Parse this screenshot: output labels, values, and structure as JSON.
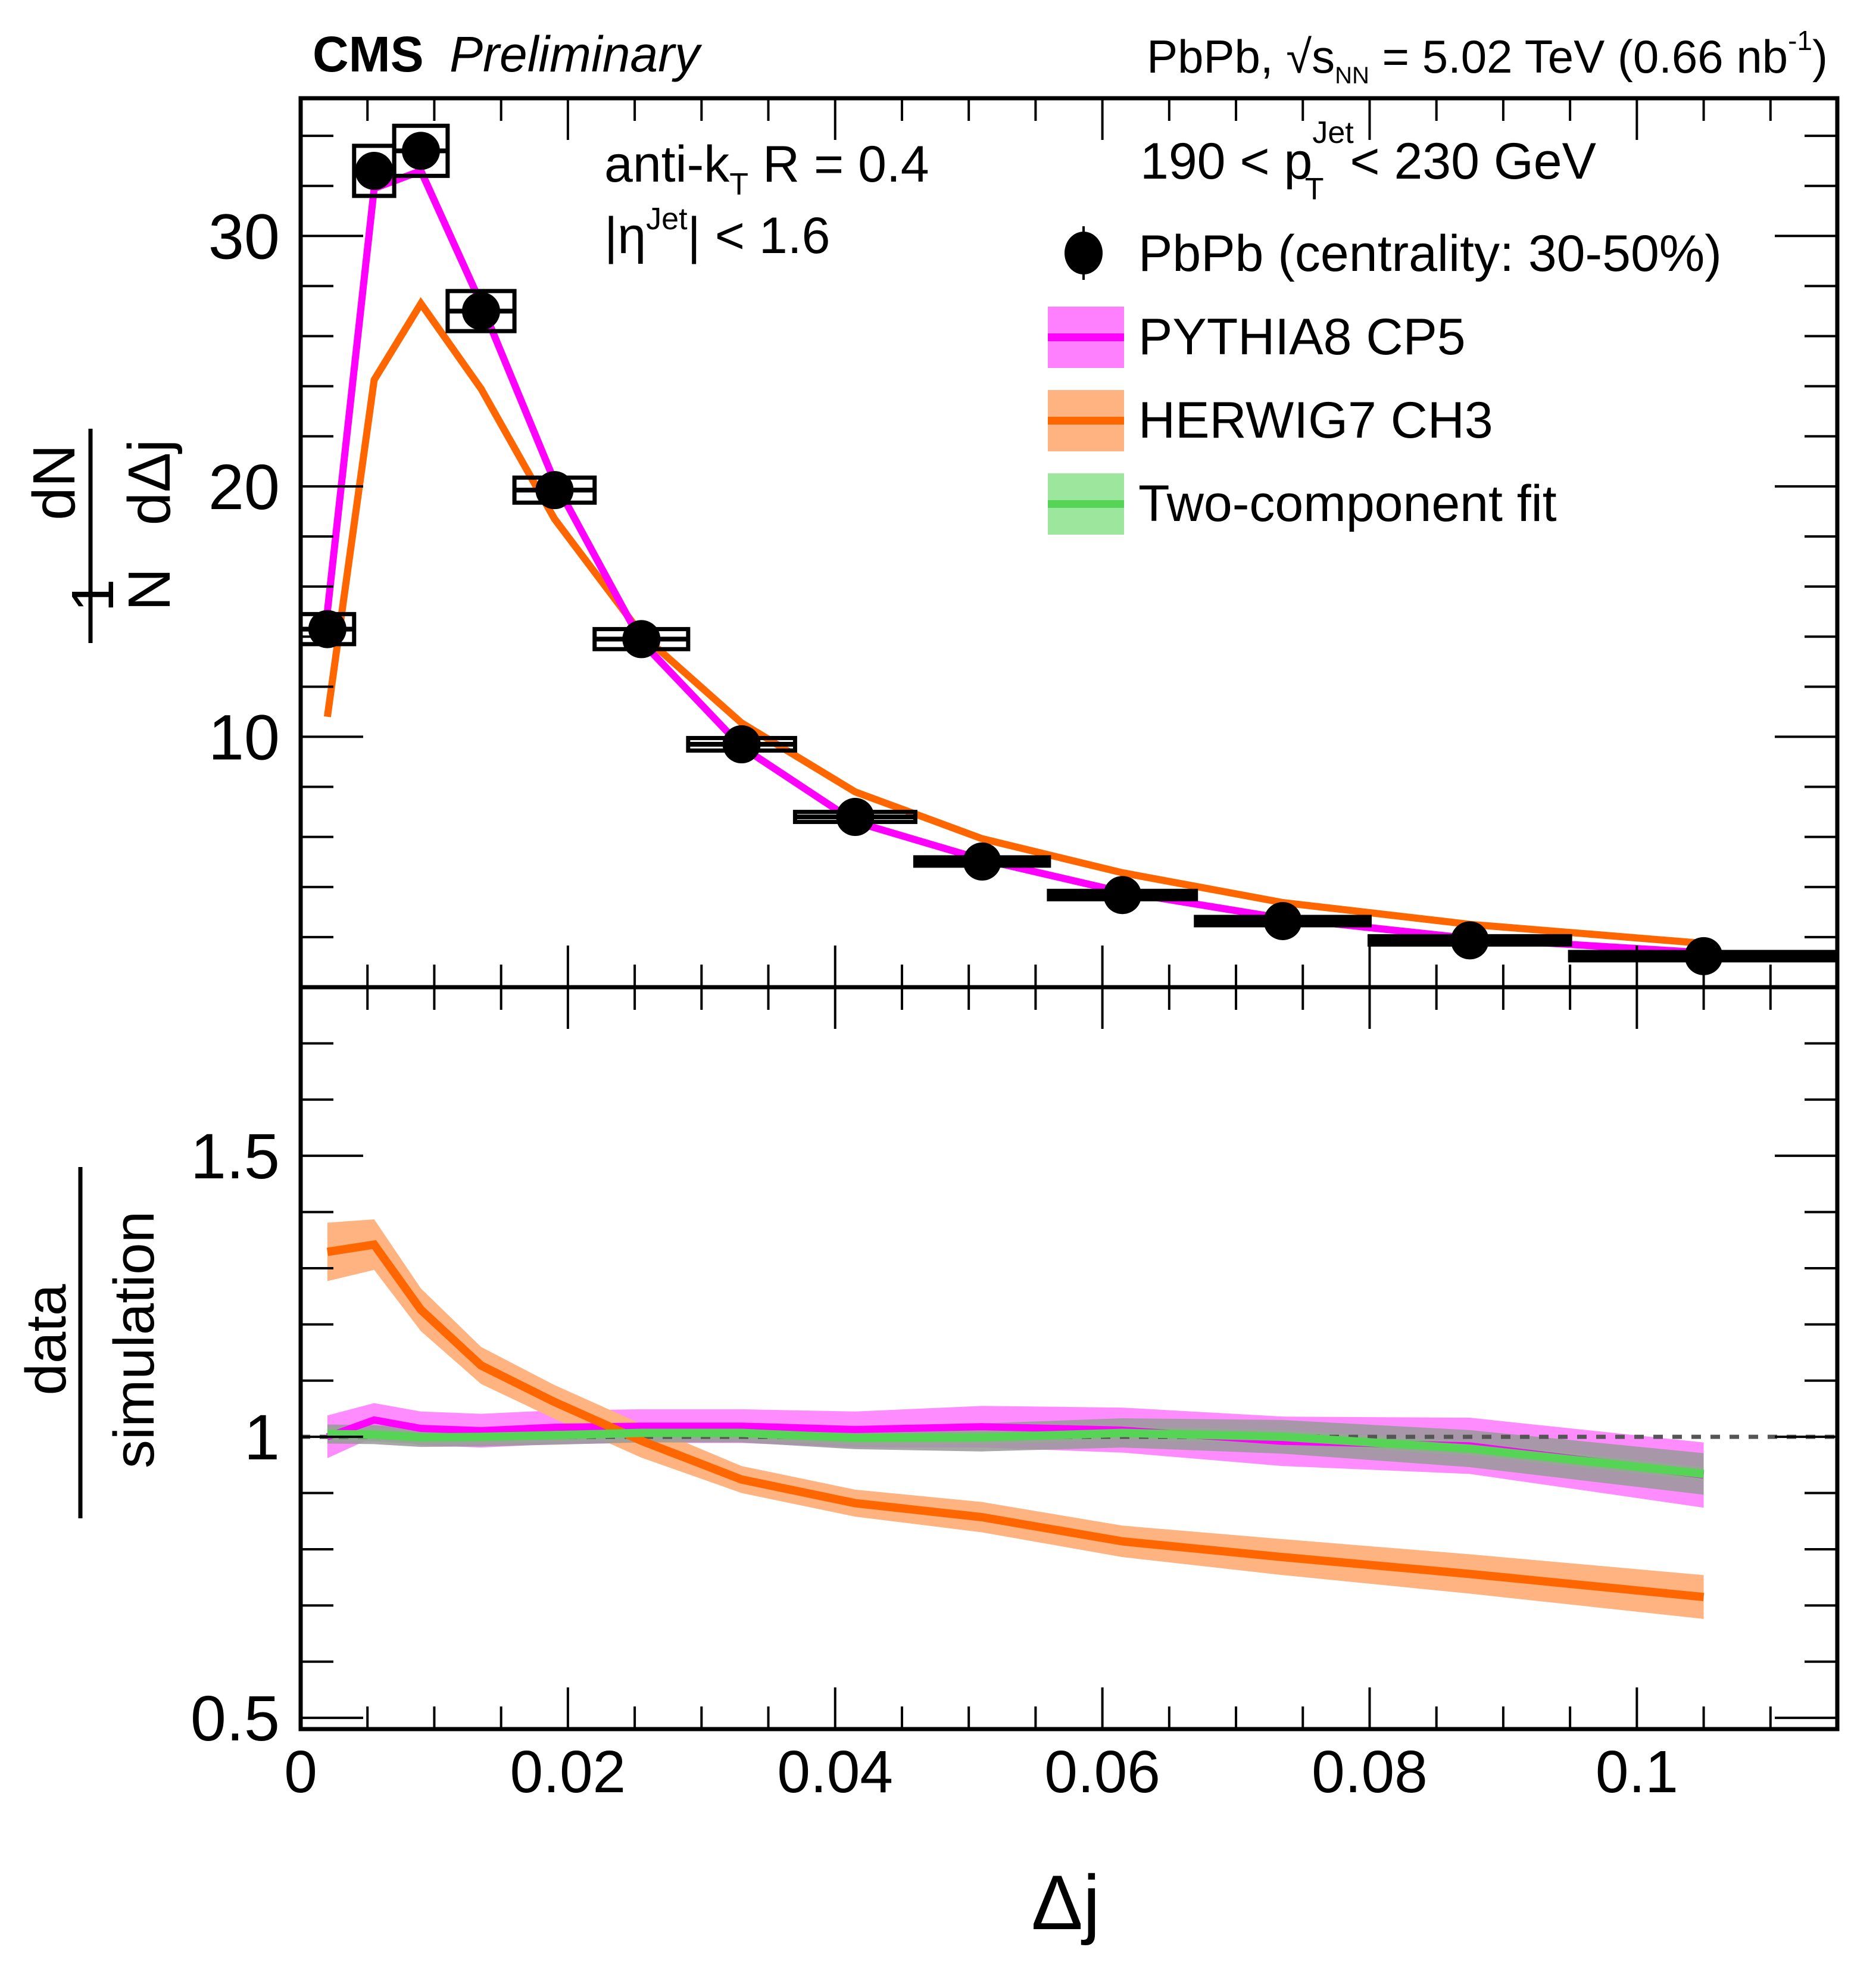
{
  "header": {
    "experiment": "CMS",
    "status": "Preliminary",
    "dataset": "PbPb, ",
    "sqrt_symbol": "√",
    "energy_var": "s",
    "energy_sub": "NN",
    "energy_text": " = 5.02 TeV (0.66 nb",
    "lumi_sup": "-1",
    "lumi_close": ")"
  },
  "annotations": {
    "algo_main": "anti-k",
    "algo_sub": "T",
    "algo_rest": " R = 0.4",
    "eta_pre": "|η",
    "eta_sup": "Jet",
    "eta_rest": "| < 1.6",
    "pt_pre": "190 < p",
    "pt_sup": "Jet",
    "pt_sub": "T",
    "pt_rest": " < 230 GeV"
  },
  "legend": [
    {
      "label": "PbPb (centrality: 30-50%)",
      "type": "marker"
    },
    {
      "label": "PYTHIA8 CP5",
      "type": "band"
    },
    {
      "label": "HERWIG7 CH3",
      "type": "band"
    },
    {
      "label": "Two-component fit",
      "type": "band"
    }
  ],
  "colors": {
    "data": "#000000",
    "pythia_line": "#ff00ff",
    "pythia_band": "#ff80ff",
    "herwig_line": "#ff6600",
    "herwig_band": "#ffb380",
    "fit_line": "#55d455",
    "fit_band": "#9de69d",
    "fit_syst_band": "#999999",
    "reference_line": "#555555"
  },
  "chart_data": [
    {
      "type": "line",
      "panel": "top",
      "title": "",
      "xlabel": "Δj",
      "ylabel_numerator_left": "1",
      "ylabel_denominator_left": "N",
      "ylabel_numerator_right": "dN",
      "ylabel_denominator_right": "dΔj",
      "xlim": [
        0,
        0.115
      ],
      "ylim": [
        0,
        35.5
      ],
      "yticks": [
        10,
        20,
        30
      ],
      "ytick_labels": [
        "10",
        "20",
        "30"
      ],
      "grid": false,
      "legend_position": "top-right",
      "bin_edges": [
        0,
        0.004,
        0.007,
        0.011,
        0.016,
        0.022,
        0.029,
        0.037,
        0.046,
        0.056,
        0.067,
        0.08,
        0.095,
        0.115
      ],
      "x": [
        0.002,
        0.0055,
        0.009,
        0.0135,
        0.019,
        0.0255,
        0.033,
        0.0415,
        0.051,
        0.0615,
        0.0735,
        0.0875,
        0.105
      ],
      "series": [
        {
          "name": "PbPb (centrality: 30-50%)",
          "kind": "data",
          "values": [
            14.3,
            32.6,
            33.4,
            27.0,
            19.85,
            13.9,
            9.7,
            6.8,
            5.02,
            3.68,
            2.64,
            1.87,
            1.24
          ],
          "syst": [
            0.6,
            1.0,
            1.0,
            0.8,
            0.5,
            0.4,
            0.25,
            0.2,
            0.15,
            0.1,
            0.08,
            0.06,
            0.05
          ]
        },
        {
          "name": "PYTHIA8 CP5",
          "kind": "model",
          "values": [
            15.0,
            31.9,
            32.6,
            27.3,
            20.2,
            13.8,
            9.6,
            6.6,
            5.1,
            3.8,
            2.75,
            1.95,
            1.38
          ]
        },
        {
          "name": "HERWIG7 CH3",
          "kind": "model",
          "values": [
            10.8,
            24.25,
            27.3,
            23.9,
            18.7,
            14.1,
            10.55,
            7.8,
            5.93,
            4.57,
            3.38,
            2.51,
            1.75
          ]
        }
      ]
    },
    {
      "type": "area",
      "panel": "bottom",
      "xlabel": "Δj",
      "ylabel_numerator": "data",
      "ylabel_denominator": "simulation",
      "xlim": [
        0,
        0.115
      ],
      "ylim": [
        0.48,
        1.8
      ],
      "yticks": [
        0.5,
        1,
        1.5
      ],
      "ytick_labels": [
        "0.5",
        "1",
        "1.5"
      ],
      "xticks": [
        0,
        0.02,
        0.04,
        0.06,
        0.08,
        0.1
      ],
      "xtick_labels": [
        "0",
        "0.02",
        "0.04",
        "0.06",
        "0.08",
        "0.1"
      ],
      "reference_line": 1.0,
      "grid": false,
      "x": [
        0.002,
        0.0055,
        0.009,
        0.0135,
        0.019,
        0.0255,
        0.033,
        0.0415,
        0.051,
        0.0615,
        0.0735,
        0.0875,
        0.105
      ],
      "series": [
        {
          "name": "PYTHIA8 CP5",
          "values": [
            1.0,
            1.03,
            1.015,
            1.011,
            1.017,
            1.019,
            1.019,
            1.013,
            1.018,
            1.012,
            0.992,
            0.984,
            0.932
          ],
          "band": [
            0.038,
            0.03,
            0.03,
            0.03,
            0.03,
            0.03,
            0.03,
            0.032,
            0.037,
            0.04,
            0.044,
            0.05,
            0.058
          ]
        },
        {
          "name": "HERWIG7 CH3",
          "values": [
            1.329,
            1.342,
            1.226,
            1.127,
            1.062,
            0.993,
            0.924,
            0.882,
            0.857,
            0.814,
            0.786,
            0.756,
            0.715
          ],
          "band": [
            0.052,
            0.045,
            0.038,
            0.033,
            0.03,
            0.03,
            0.024,
            0.024,
            0.027,
            0.028,
            0.032,
            0.035,
            0.039
          ]
        },
        {
          "name": "Two-component fit",
          "values": [
            1.005,
            1.004,
            0.999,
            1.0,
            1.003,
            1.007,
            1.007,
            0.998,
            0.999,
            1.007,
            1.0,
            0.979,
            0.934
          ],
          "band": [
            0.012,
            0.012,
            0.012,
            0.012,
            0.012,
            0.012,
            0.012,
            0.012,
            0.012,
            0.012,
            0.012,
            0.012,
            0.012
          ],
          "syst_band": [
            0.017,
            0.017,
            0.017,
            0.017,
            0.017,
            0.017,
            0.017,
            0.02,
            0.025,
            0.026,
            0.03,
            0.033,
            0.037
          ]
        }
      ]
    }
  ]
}
